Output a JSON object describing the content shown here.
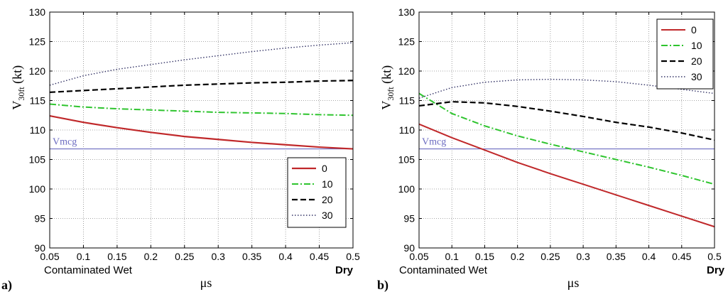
{
  "chart_data": [
    {
      "type": "line",
      "panel_label": "a)",
      "xlabel": "μs",
      "ylabel": "V30ft (kt)",
      "ylabel_main": "V",
      "ylabel_sub": "30ft",
      "ylabel_unit": " (kt)",
      "xlim": [
        0.05,
        0.5
      ],
      "ylim": [
        90,
        130
      ],
      "xticks": [
        0.05,
        0.1,
        0.15,
        0.2,
        0.25,
        0.3,
        0.35,
        0.4,
        0.45,
        0.5
      ],
      "xtick_labels": [
        "0.05",
        "0.1",
        "0.15",
        "0.2",
        "0.25",
        "0.3",
        "0.35",
        "0.4",
        "0.45",
        "0.5"
      ],
      "yticks": [
        90,
        95,
        100,
        105,
        110,
        115,
        120,
        125,
        130
      ],
      "ytick_labels": [
        "90",
        "95",
        "100",
        "105",
        "110",
        "115",
        "120",
        "125",
        "130"
      ],
      "grid": true,
      "legend_position": "lower-right",
      "x_annotation_left": "Contaminated Wet",
      "x_annotation_right": "Dry",
      "reference_line": {
        "label": "Vmcg",
        "value": 106.8,
        "color": "#6b6bc0"
      },
      "series": [
        {
          "name": "0",
          "color": "#c0282a",
          "dash": "",
          "width": 2.2,
          "x": [
            0.05,
            0.1,
            0.15,
            0.2,
            0.25,
            0.3,
            0.35,
            0.4,
            0.45,
            0.5
          ],
          "y": [
            112.4,
            111.3,
            110.4,
            109.6,
            108.9,
            108.4,
            107.9,
            107.5,
            107.1,
            106.8
          ]
        },
        {
          "name": "10",
          "color": "#2ec42e",
          "dash": "9 3 2 3",
          "width": 2,
          "x": [
            0.05,
            0.1,
            0.15,
            0.2,
            0.25,
            0.3,
            0.35,
            0.4,
            0.45,
            0.5
          ],
          "y": [
            114.4,
            113.9,
            113.6,
            113.4,
            113.2,
            113.0,
            112.9,
            112.8,
            112.6,
            112.5
          ]
        },
        {
          "name": "20",
          "color": "#000000",
          "dash": "8 4",
          "width": 2.2,
          "x": [
            0.05,
            0.1,
            0.15,
            0.2,
            0.25,
            0.3,
            0.35,
            0.4,
            0.45,
            0.5
          ],
          "y": [
            116.4,
            116.7,
            117.0,
            117.3,
            117.6,
            117.8,
            118.0,
            118.1,
            118.3,
            118.4
          ]
        },
        {
          "name": "30",
          "color": "#333366",
          "dash": "1.5 2.5",
          "width": 1.4,
          "x": [
            0.05,
            0.1,
            0.15,
            0.2,
            0.25,
            0.3,
            0.35,
            0.4,
            0.45,
            0.5
          ],
          "y": [
            117.6,
            119.2,
            120.3,
            121.1,
            121.9,
            122.6,
            123.3,
            123.9,
            124.4,
            124.8
          ]
        }
      ]
    },
    {
      "type": "line",
      "panel_label": "b)",
      "xlabel": "μs",
      "ylabel": "V30ft (kt)",
      "ylabel_main": "V",
      "ylabel_sub": "30ft",
      "ylabel_unit": " (kt)",
      "xlim": [
        0.05,
        0.5
      ],
      "ylim": [
        90,
        130
      ],
      "xticks": [
        0.05,
        0.1,
        0.15,
        0.2,
        0.25,
        0.3,
        0.35,
        0.4,
        0.45,
        0.5
      ],
      "xtick_labels": [
        "0.05",
        "0.1",
        "0.15",
        "0.2",
        "0.25",
        "0.3",
        "0.35",
        "0.4",
        "0.45",
        "0.5"
      ],
      "yticks": [
        90,
        95,
        100,
        105,
        110,
        115,
        120,
        125,
        130
      ],
      "ytick_labels": [
        "90",
        "95",
        "100",
        "105",
        "110",
        "115",
        "120",
        "125",
        "130"
      ],
      "grid": true,
      "legend_position": "top-right",
      "x_annotation_left": "Contaminated Wet",
      "x_annotation_right": "Dry",
      "reference_line": {
        "label": "Vmcg",
        "value": 106.8,
        "color": "#6b6bc0"
      },
      "series": [
        {
          "name": "0",
          "color": "#c0282a",
          "dash": "",
          "width": 2,
          "x": [
            0.05,
            0.1,
            0.15,
            0.2,
            0.25,
            0.3,
            0.35,
            0.4,
            0.45,
            0.5
          ],
          "y": [
            111.0,
            108.7,
            106.6,
            104.5,
            102.6,
            100.8,
            99.0,
            97.2,
            95.4,
            93.6
          ]
        },
        {
          "name": "10",
          "color": "#2ec42e",
          "dash": "9 3 2 3",
          "width": 2,
          "x": [
            0.05,
            0.1,
            0.15,
            0.2,
            0.25,
            0.3,
            0.35,
            0.4,
            0.45,
            0.5
          ],
          "y": [
            116.2,
            112.8,
            110.7,
            109.0,
            107.6,
            106.3,
            105.0,
            103.7,
            102.3,
            100.8
          ]
        },
        {
          "name": "20",
          "color": "#000000",
          "dash": "8 4",
          "width": 2.2,
          "x": [
            0.05,
            0.1,
            0.15,
            0.2,
            0.25,
            0.3,
            0.35,
            0.4,
            0.45,
            0.5
          ],
          "y": [
            114.1,
            114.8,
            114.6,
            114.0,
            113.2,
            112.3,
            111.3,
            110.5,
            109.5,
            108.3
          ]
        },
        {
          "name": "30",
          "color": "#333366",
          "dash": "1.5 2.5",
          "width": 1.4,
          "x": [
            0.05,
            0.1,
            0.15,
            0.2,
            0.25,
            0.3,
            0.35,
            0.4,
            0.45,
            0.5
          ],
          "y": [
            115.4,
            117.2,
            118.1,
            118.5,
            118.6,
            118.5,
            118.2,
            117.6,
            116.9,
            116.2
          ]
        }
      ]
    }
  ]
}
